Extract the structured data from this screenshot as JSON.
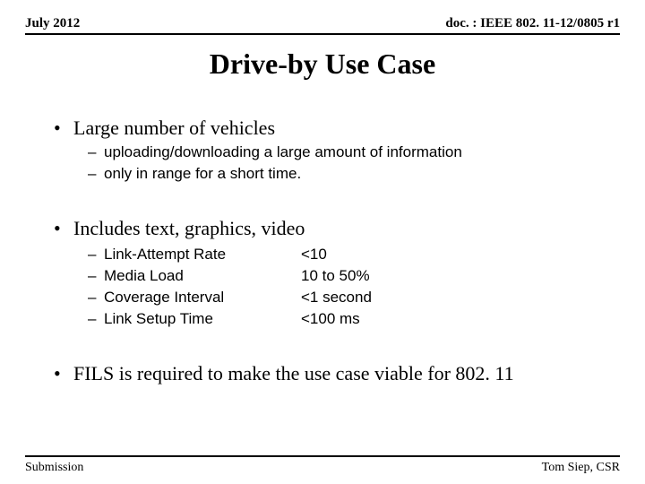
{
  "header": {
    "date": "July 2012",
    "doc": "doc. : IEEE 802. 11-12/0805 r1"
  },
  "title": "Drive-by Use Case",
  "bullets": {
    "b1": "Large number of vehicles",
    "b1_sub1": "uploading/downloading a large amount of information",
    "b1_sub2": "only in range for a short time.",
    "b2": "Includes text, graphics, video",
    "b3": "FILS is required to make the use case viable for 802. 11"
  },
  "metrics": {
    "m1_label": "Link-Attempt Rate",
    "m1_val": "<10",
    "m2_label": "Media Load",
    "m2_val": "10 to 50%",
    "m3_label": "Coverage Interval",
    "m3_val": "<1 second",
    "m4_label": "Link Setup Time",
    "m4_val": "<100 ms"
  },
  "footer": {
    "left": "Submission",
    "right": "Tom Siep, CSR"
  }
}
